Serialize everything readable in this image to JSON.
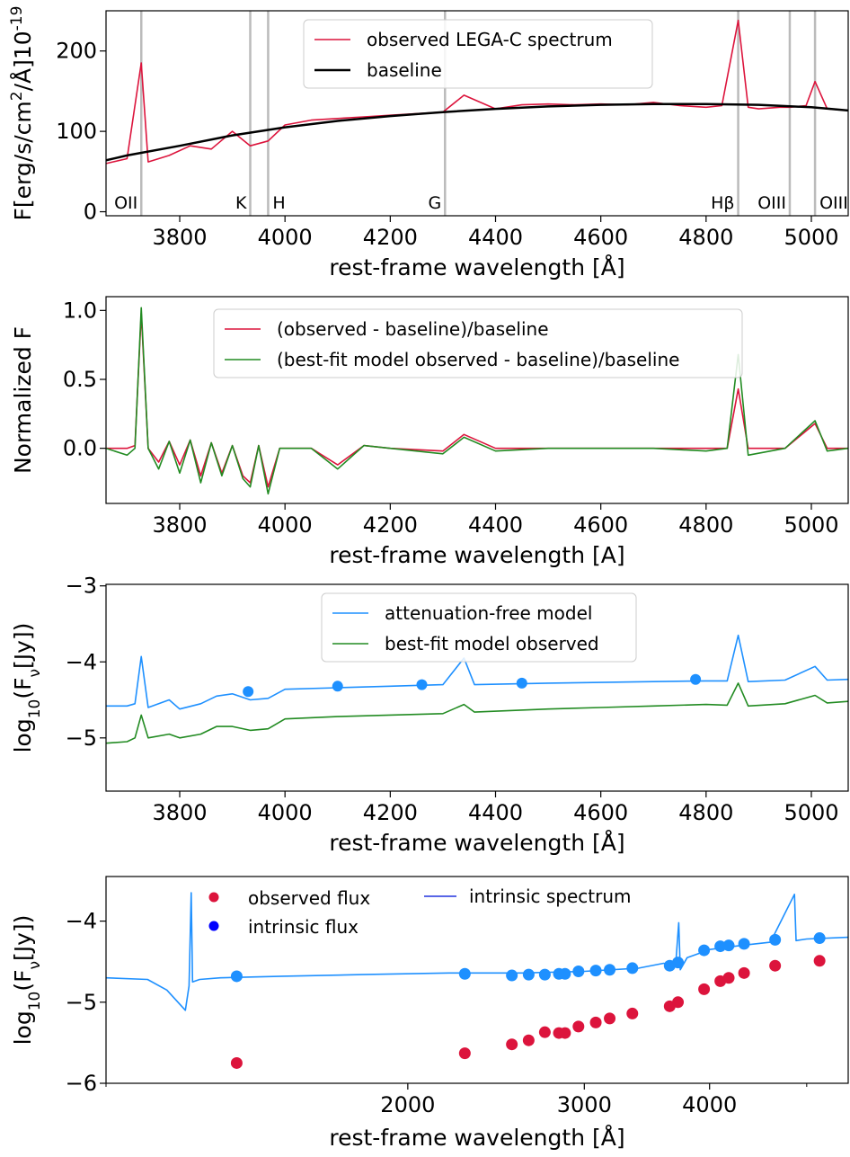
{
  "chart_data": [
    {
      "type": "line",
      "xlabel": "rest-frame wavelength [Å]",
      "ylabel": "F[erg/s/cm²/Å]10⁻¹⁹",
      "xlim": [
        3660,
        5070
      ],
      "ylim": [
        -5,
        250
      ],
      "xticks": [
        "3800",
        "4000",
        "4200",
        "4400",
        "4600",
        "4800",
        "5000"
      ],
      "yticks": [
        "0",
        "100",
        "200"
      ],
      "legend_position": "top-center",
      "series": [
        {
          "name": "observed LEGA-C spectrum",
          "color": "#dc143c",
          "x": [
            3660,
            3700,
            3727,
            3740,
            3780,
            3820,
            3860,
            3900,
            3934,
            3968,
            4000,
            4050,
            4100,
            4150,
            4200,
            4250,
            4300,
            4340,
            4400,
            4450,
            4500,
            4550,
            4600,
            4650,
            4700,
            4750,
            4800,
            4830,
            4861,
            4880,
            4900,
            4940,
            4959,
            4990,
            5007,
            5030,
            5070
          ],
          "y": [
            60,
            66,
            185,
            62,
            70,
            82,
            78,
            100,
            82,
            88,
            108,
            114,
            116,
            118,
            120,
            122,
            124,
            145,
            128,
            133,
            134,
            133,
            134,
            133,
            136,
            132,
            130,
            132,
            238,
            130,
            128,
            130,
            130,
            132,
            162,
            128,
            126
          ]
        },
        {
          "name": "baseline",
          "color": "#000000",
          "x": [
            3660,
            3700,
            3800,
            3900,
            4000,
            4100,
            4200,
            4300,
            4400,
            4500,
            4600,
            4700,
            4800,
            4900,
            5000,
            5070
          ],
          "y": [
            64,
            70,
            82,
            95,
            105,
            113,
            119,
            124,
            128,
            131,
            133,
            134,
            134,
            133,
            130,
            126
          ]
        }
      ],
      "annotations": [
        {
          "label": "OII",
          "x": 3727
        },
        {
          "label": "K",
          "x": 3934
        },
        {
          "label": "H",
          "x": 3968
        },
        {
          "label": "G",
          "x": 4304
        },
        {
          "label": "Hβ",
          "x": 4861
        },
        {
          "label": "OIII",
          "x": 4959
        },
        {
          "label": "OIII",
          "x": 5007
        }
      ]
    },
    {
      "type": "line",
      "xlabel": "rest-frame wavelength [A]",
      "ylabel": "Normalized F",
      "xlim": [
        3660,
        5070
      ],
      "ylim": [
        -0.4,
        1.1
      ],
      "xticks": [
        "3800",
        "4000",
        "4200",
        "4400",
        "4600",
        "4800",
        "5000"
      ],
      "yticks": [
        "0.0",
        "0.5",
        "1.0"
      ],
      "legend_position": "top-center",
      "series": [
        {
          "name": "(observed - baseline)/baseline",
          "color": "#dc143c",
          "x": [
            3660,
            3700,
            3715,
            3727,
            3740,
            3760,
            3780,
            3800,
            3820,
            3840,
            3860,
            3880,
            3900,
            3920,
            3934,
            3950,
            3968,
            3990,
            4000,
            4050,
            4100,
            4150,
            4200,
            4300,
            4340,
            4400,
            4500,
            4600,
            4700,
            4800,
            4840,
            4861,
            4880,
            4950,
            5007,
            5030,
            5070
          ],
          "y": [
            0,
            0,
            0.02,
            0.98,
            0,
            -0.1,
            0.05,
            -0.12,
            0.06,
            -0.2,
            0.04,
            -0.18,
            0.02,
            -0.2,
            -0.25,
            0.02,
            -0.28,
            0,
            0,
            0,
            -0.12,
            0.02,
            0,
            -0.02,
            0.1,
            0,
            0,
            0,
            0,
            0,
            0,
            0.43,
            0,
            0,
            0.18,
            0,
            0
          ]
        },
        {
          "name": "(best-fit model observed - baseline)/baseline",
          "color": "#228b22",
          "x": [
            3660,
            3700,
            3715,
            3727,
            3740,
            3760,
            3780,
            3800,
            3820,
            3840,
            3860,
            3880,
            3900,
            3920,
            3934,
            3950,
            3968,
            3990,
            4000,
            4050,
            4100,
            4150,
            4200,
            4300,
            4340,
            4400,
            4500,
            4600,
            4700,
            4800,
            4840,
            4861,
            4880,
            4950,
            5007,
            5030,
            5070
          ],
          "y": [
            0,
            -0.05,
            0,
            1.02,
            0,
            -0.15,
            0.05,
            -0.18,
            0.06,
            -0.25,
            0.04,
            -0.2,
            0.02,
            -0.22,
            -0.28,
            0.02,
            -0.33,
            0,
            0,
            0,
            -0.15,
            0.02,
            0,
            -0.04,
            0.08,
            -0.02,
            0,
            0,
            0,
            -0.02,
            0,
            0.68,
            -0.05,
            0,
            0.2,
            -0.02,
            0
          ]
        }
      ]
    },
    {
      "type": "line",
      "xlabel": "rest-frame wavelength [Å]",
      "ylabel": "log₁₀(F_ν[Jy])",
      "xlim": [
        3660,
        5070
      ],
      "ylim": [
        -5.7,
        -2.98
      ],
      "xticks": [
        "3800",
        "4000",
        "4200",
        "4400",
        "4600",
        "4800",
        "5000"
      ],
      "yticks": [
        "−3",
        "−4",
        "−5"
      ],
      "legend_position": "top-center",
      "series": [
        {
          "name": "attenuation-free model",
          "color": "#1e90ff",
          "x": [
            3660,
            3700,
            3715,
            3727,
            3740,
            3780,
            3800,
            3840,
            3870,
            3900,
            3934,
            3968,
            4000,
            4100,
            4200,
            4300,
            4340,
            4360,
            4500,
            4600,
            4700,
            4800,
            4840,
            4861,
            4880,
            4950,
            5007,
            5030,
            5070
          ],
          "y": [
            -4.58,
            -4.58,
            -4.55,
            -3.93,
            -4.6,
            -4.5,
            -4.62,
            -4.55,
            -4.45,
            -4.42,
            -4.5,
            -4.48,
            -4.36,
            -4.34,
            -4.32,
            -4.3,
            -3.95,
            -4.3,
            -4.28,
            -4.27,
            -4.26,
            -4.25,
            -4.25,
            -3.65,
            -4.26,
            -4.24,
            -4.06,
            -4.24,
            -4.23
          ]
        },
        {
          "name": "best-fit model observed",
          "color": "#228b22",
          "x": [
            3660,
            3700,
            3715,
            3727,
            3740,
            3780,
            3800,
            3840,
            3870,
            3900,
            3934,
            3968,
            4000,
            4100,
            4200,
            4300,
            4340,
            4360,
            4500,
            4600,
            4700,
            4800,
            4840,
            4861,
            4880,
            4950,
            5007,
            5030,
            5070
          ],
          "y": [
            -5.07,
            -5.05,
            -5.0,
            -4.7,
            -5.0,
            -4.95,
            -5.0,
            -4.95,
            -4.85,
            -4.85,
            -4.9,
            -4.88,
            -4.75,
            -4.72,
            -4.7,
            -4.68,
            -4.56,
            -4.66,
            -4.62,
            -4.6,
            -4.58,
            -4.56,
            -4.57,
            -4.28,
            -4.58,
            -4.55,
            -4.44,
            -4.54,
            -4.52
          ]
        },
        {
          "name": "",
          "type": "scatter",
          "color": "#1e90ff",
          "x": [
            3930,
            4100,
            4260,
            4450,
            4780
          ],
          "y": [
            -4.39,
            -4.32,
            -4.3,
            -4.28,
            -4.23
          ]
        }
      ]
    },
    {
      "type": "scatter",
      "xlabel": "rest-frame wavelength [Å]",
      "ylabel": "log₁₀(F_ν[Jy])",
      "xscale": "log",
      "xlim": [
        1000,
        5500
      ],
      "ylim": [
        -6,
        -3.45
      ],
      "xticks": [
        "2000",
        "3000",
        "4000"
      ],
      "yticks": [
        "−4",
        "−5",
        "−6"
      ],
      "legend_position": "top",
      "series": [
        {
          "name": "observed flux",
          "type": "scatter",
          "color": "#dc143c",
          "x": [
            1350,
            2280,
            2540,
            2640,
            2740,
            2830,
            2870,
            2960,
            3080,
            3180,
            3350,
            3650,
            3720,
            3950,
            4100,
            4180,
            4330,
            4650,
            5150
          ],
          "y": [
            -5.75,
            -5.63,
            -5.52,
            -5.47,
            -5.37,
            -5.38,
            -5.38,
            -5.3,
            -5.25,
            -5.2,
            -5.14,
            -5.05,
            -5.0,
            -4.84,
            -4.74,
            -4.7,
            -4.64,
            -4.55,
            -4.49
          ]
        },
        {
          "name": "intrinsic flux",
          "type": "scatter",
          "color": "#1e90ff",
          "x": [
            1350,
            2280,
            2540,
            2640,
            2740,
            2830,
            2870,
            2960,
            3080,
            3180,
            3350,
            3650,
            3720,
            3950,
            4100,
            4180,
            4330,
            4650,
            5150
          ],
          "y": [
            -4.68,
            -4.65,
            -4.67,
            -4.66,
            -4.66,
            -4.65,
            -4.65,
            -4.62,
            -4.61,
            -4.6,
            -4.58,
            -4.55,
            -4.51,
            -4.36,
            -4.31,
            -4.3,
            -4.28,
            -4.23,
            -4.21
          ]
        },
        {
          "name": "intrinsic spectrum",
          "type": "line",
          "color": "#1e90ff",
          "x": [
            1000,
            1100,
            1150,
            1200,
            1210,
            1216,
            1220,
            1240,
            1300,
            1500,
            1800,
            2200,
            2600,
            3000,
            3400,
            3600,
            3700,
            3727,
            3740,
            3800,
            3900,
            4000,
            4300,
            4600,
            4861,
            4880,
            5000,
            5500
          ],
          "y": [
            -4.7,
            -4.72,
            -4.85,
            -5.1,
            -4.8,
            -3.65,
            -4.75,
            -4.72,
            -4.7,
            -4.68,
            -4.66,
            -4.64,
            -4.64,
            -4.62,
            -4.58,
            -4.52,
            -4.55,
            -4.02,
            -4.6,
            -4.45,
            -4.4,
            -4.35,
            -4.3,
            -4.26,
            -3.67,
            -4.24,
            -4.22,
            -4.2
          ]
        }
      ]
    }
  ]
}
